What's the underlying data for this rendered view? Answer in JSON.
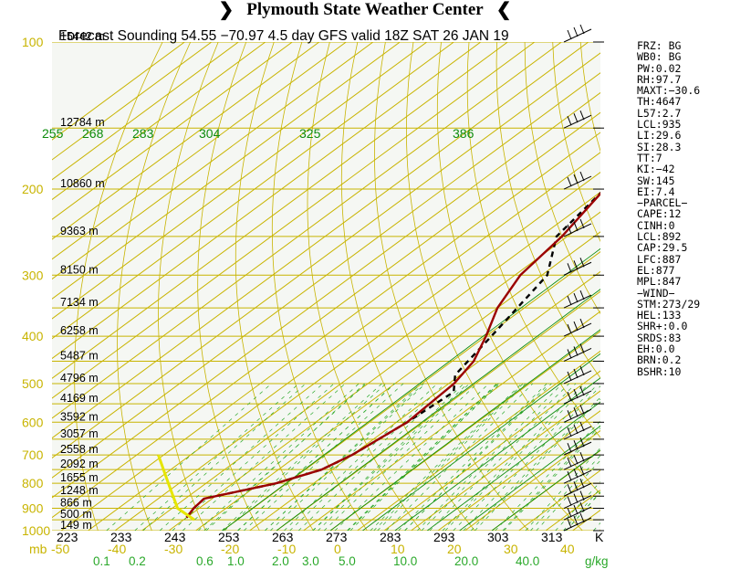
{
  "header": {
    "title": "Plymouth State Weather Center"
  },
  "chart_data": {
    "type": "skew-t log-p sounding",
    "title": "Forecast Sounding 54.55 −70.97 4.5 day GFS valid 18Z SAT 26 JAN 19",
    "pressure_axis": {
      "unit": "mb",
      "labels": [
        100,
        200,
        300,
        400,
        500,
        600,
        700,
        800,
        900,
        1000
      ],
      "ylim": [
        1000,
        100
      ]
    },
    "temperature_axis": {
      "unit": "C",
      "labels": [
        "-50",
        "-40",
        "-30",
        "-20",
        "-10",
        "0",
        "10",
        "20",
        "30",
        "40"
      ],
      "xlim": [
        -50,
        45
      ]
    },
    "kelvin_labels": {
      "values": [
        "223",
        "233",
        "243",
        "253",
        "263",
        "273",
        "283",
        "293",
        "303",
        "313"
      ],
      "unit": "K"
    },
    "heights": [
      {
        "p": 100,
        "label": "15442 m"
      },
      {
        "p": 150,
        "label": "12784 m"
      },
      {
        "p": 200,
        "label": "10860 m"
      },
      {
        "p": 250,
        "label": "9363 m"
      },
      {
        "p": 300,
        "label": "8150 m"
      },
      {
        "p": 350,
        "label": "7134 m"
      },
      {
        "p": 400,
        "label": "6258 m"
      },
      {
        "p": 450,
        "label": "5487 m"
      },
      {
        "p": 500,
        "label": "4796 m"
      },
      {
        "p": 550,
        "label": "4169 m"
      },
      {
        "p": 600,
        "label": "3592 m"
      },
      {
        "p": 650,
        "label": "3057 m"
      },
      {
        "p": 700,
        "label": "2558 m"
      },
      {
        "p": 750,
        "label": "2092 m"
      },
      {
        "p": 800,
        "label": "1655 m"
      },
      {
        "p": 850,
        "label": "1248 m"
      },
      {
        "p": 900,
        "label": "866 m"
      },
      {
        "p": 950,
        "label": "500 m"
      },
      {
        "p": 1000,
        "label": "149 m"
      }
    ],
    "theta_labels": [
      "255",
      "268",
      "283",
      "304",
      "325",
      "386"
    ],
    "mixing_ratio": {
      "labels": [
        "0.1",
        "0.2",
        "0.6",
        "1.0",
        "2.0",
        "3.0",
        "5.0",
        "10.0",
        "20.0",
        "40.0"
      ],
      "unit": "g/kg"
    },
    "temperature_profile": [
      {
        "p": 940,
        "t": -30
      },
      {
        "p": 900,
        "t": -31
      },
      {
        "p": 860,
        "t": -31.5
      },
      {
        "p": 800,
        "t": -22
      },
      {
        "p": 750,
        "t": -17
      },
      {
        "p": 700,
        "t": -15
      },
      {
        "p": 600,
        "t": -13
      },
      {
        "p": 500,
        "t": -14
      },
      {
        "p": 450,
        "t": -16
      },
      {
        "p": 400,
        "t": -20
      },
      {
        "p": 350,
        "t": -25
      },
      {
        "p": 300,
        "t": -29
      },
      {
        "p": 250,
        "t": -31
      },
      {
        "p": 200,
        "t": -35
      },
      {
        "p": 150,
        "t": -41
      },
      {
        "p": 100,
        "t": -48
      }
    ],
    "dewpoint_profile": [
      {
        "p": 940,
        "t": -30
      },
      {
        "p": 900,
        "t": -31
      },
      {
        "p": 860,
        "t": -31.5
      },
      {
        "p": 800,
        "t": -22
      },
      {
        "p": 750,
        "t": -17
      },
      {
        "p": 700,
        "t": -15
      },
      {
        "p": 600,
        "t": -13
      },
      {
        "p": 520,
        "t": -12
      },
      {
        "p": 480,
        "t": -16
      },
      {
        "p": 400,
        "t": -19
      },
      {
        "p": 300,
        "t": -24
      },
      {
        "p": 250,
        "t": -32
      },
      {
        "p": 200,
        "t": -35
      },
      {
        "p": 150,
        "t": -42
      },
      {
        "p": 100,
        "t": -50
      }
    ],
    "parcel_path": [
      {
        "p": 950,
        "t": -28
      },
      {
        "p": 900,
        "t": -34
      },
      {
        "p": 800,
        "t": -42
      },
      {
        "p": 700,
        "t": -51
      }
    ],
    "wind_pressures": [
      100,
      150,
      200,
      250,
      300,
      350,
      400,
      450,
      500,
      550,
      600,
      650,
      700,
      750,
      800,
      850,
      900,
      950,
      1000
    ],
    "colors": {
      "grid": "#c8b400",
      "dry_adiabat": "#0d8c0d",
      "mixing_ratio": "#2aa82a",
      "temperature": "#9b0000",
      "dewpoint": "#000000",
      "parcel": "#e6e600",
      "plot_bg": "#f5f7f3"
    }
  },
  "indices": [
    "FRZ: BG",
    "WB0: BG",
    "PW:0.02",
    "RH:97.7",
    "MAXT:−30.6",
    "TH:4647",
    "L57:2.7",
    "LCL:935",
    "LI:29.6",
    "SI:28.3",
    "TT:7",
    "KI:−42",
    "SW:145",
    "EI:7.4",
    "−PARCEL−",
    "CAPE:12",
    "CINH:0",
    "LCL:892",
    "CAP:29.5",
    "LFC:887",
    "EL:877",
    "MPL:847",
    "−WIND−",
    "STM:273/29",
    "HEL:133",
    "SHR+:0.0",
    "SRDS:83",
    "EH:0.0",
    "BRN:0.2",
    "BSHR:10"
  ],
  "labels": {
    "mb": "mb",
    "g_per_kg": "g/kg",
    "kelvin": "K"
  }
}
